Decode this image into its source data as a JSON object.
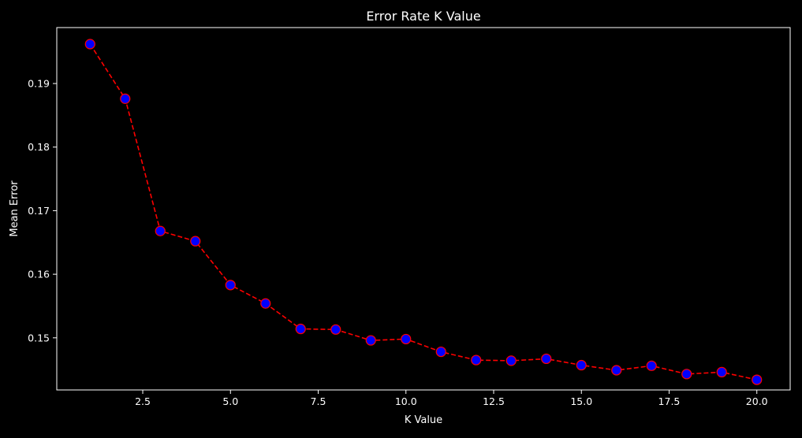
{
  "chart_data": {
    "type": "line",
    "title": "Error Rate K Value",
    "xlabel": "K Value",
    "ylabel": "Mean Error",
    "xlim": [
      0.05,
      20.95
    ],
    "ylim": [
      0.1418,
      0.1988
    ],
    "xticks": [
      "2.5",
      "5.0",
      "7.5",
      "10.0",
      "12.5",
      "15.0",
      "17.5",
      "20.0"
    ],
    "xtick_values": [
      2.5,
      5.0,
      7.5,
      10.0,
      12.5,
      15.0,
      17.5,
      20.0
    ],
    "yticks": [
      "0.15",
      "0.16",
      "0.17",
      "0.18",
      "0.19"
    ],
    "ytick_values": [
      0.15,
      0.16,
      0.17,
      0.18,
      0.19
    ],
    "grid": false,
    "line_style": "dashed",
    "line_color": "#ff0000",
    "marker": "circle",
    "marker_face_color": "#0000ff",
    "marker_edge_color": "#ff0000",
    "background_color": "#000000",
    "foreground_color": "#ffffff",
    "x": [
      1,
      2,
      3,
      4,
      5,
      6,
      7,
      8,
      9,
      10,
      11,
      12,
      13,
      14,
      15,
      16,
      17,
      18,
      19,
      20
    ],
    "y": [
      0.1962,
      0.1876,
      0.1668,
      0.1652,
      0.1583,
      0.1554,
      0.1514,
      0.1513,
      0.1496,
      0.1498,
      0.1478,
      0.1465,
      0.1464,
      0.1467,
      0.1457,
      0.1449,
      0.1456,
      0.1443,
      0.1446,
      0.1434
    ]
  }
}
